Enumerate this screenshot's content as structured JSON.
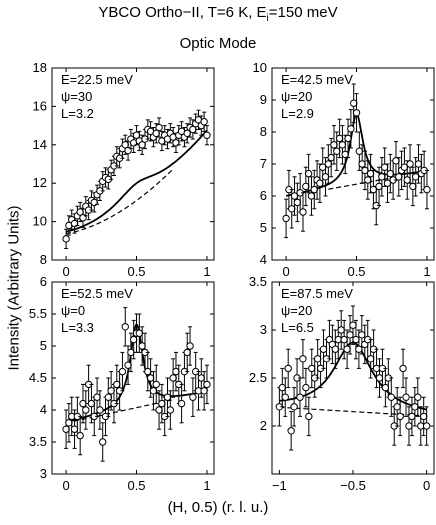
{
  "figure": {
    "title_line1": "YBCO Ortho−II, T=6 K, E",
    "title_line1_sub": "i",
    "title_line1_tail": "=150 meV",
    "title_line2": "Optic Mode",
    "ylabel": "Intensity (Arbitrary Units)",
    "xlabel": "(H, 0.5) (r. l. u.)"
  },
  "chart_data": [
    {
      "type": "scatter",
      "panel": "top-left",
      "annotations": [
        "E=22.5 meV",
        "ψ=30",
        "L=3.2"
      ],
      "xlim": [
        -0.1,
        1.05
      ],
      "ylim": [
        8,
        18
      ],
      "xticks": [
        0,
        0.5,
        1
      ],
      "xtick_labels": [
        "0",
        "0.5",
        "1"
      ],
      "yticks": [
        8,
        10,
        12,
        14,
        16,
        18
      ],
      "ytick_labels": [
        "8",
        "10",
        "12",
        "14",
        "16",
        "18"
      ],
      "points": [
        [
          0.0,
          9.1,
          0.5
        ],
        [
          0.02,
          9.8,
          0.5
        ],
        [
          0.04,
          10.1,
          0.5
        ],
        [
          0.06,
          9.9,
          0.5
        ],
        [
          0.08,
          10.3,
          0.5
        ],
        [
          0.1,
          10.5,
          0.5
        ],
        [
          0.12,
          10.2,
          0.5
        ],
        [
          0.14,
          10.8,
          0.5
        ],
        [
          0.16,
          10.6,
          0.5
        ],
        [
          0.18,
          11.1,
          0.5
        ],
        [
          0.2,
          11.0,
          0.5
        ],
        [
          0.22,
          11.4,
          0.5
        ],
        [
          0.24,
          11.6,
          0.5
        ],
        [
          0.26,
          12.1,
          0.5
        ],
        [
          0.28,
          12.3,
          0.5
        ],
        [
          0.3,
          12.2,
          0.5
        ],
        [
          0.32,
          12.7,
          0.5
        ],
        [
          0.34,
          12.9,
          0.5
        ],
        [
          0.36,
          13.4,
          0.5
        ],
        [
          0.38,
          13.3,
          0.5
        ],
        [
          0.4,
          13.8,
          0.5
        ],
        [
          0.42,
          14.0,
          0.5
        ],
        [
          0.44,
          13.7,
          0.5
        ],
        [
          0.46,
          14.3,
          0.5
        ],
        [
          0.48,
          14.1,
          0.5
        ],
        [
          0.5,
          14.5,
          0.5
        ],
        [
          0.52,
          14.2,
          0.5
        ],
        [
          0.54,
          14.0,
          0.5
        ],
        [
          0.56,
          14.3,
          0.5
        ],
        [
          0.58,
          14.8,
          0.5
        ],
        [
          0.6,
          14.7,
          0.5
        ],
        [
          0.62,
          14.4,
          0.5
        ],
        [
          0.64,
          14.6,
          0.5
        ],
        [
          0.66,
          14.9,
          0.5
        ],
        [
          0.68,
          14.2,
          0.5
        ],
        [
          0.7,
          14.5,
          0.5
        ],
        [
          0.72,
          14.3,
          0.5
        ],
        [
          0.74,
          14.6,
          0.5
        ],
        [
          0.76,
          14.4,
          0.5
        ],
        [
          0.78,
          14.1,
          0.5
        ],
        [
          0.8,
          14.5,
          0.5
        ],
        [
          0.82,
          14.7,
          0.5
        ],
        [
          0.84,
          14.4,
          0.5
        ],
        [
          0.86,
          14.6,
          0.5
        ],
        [
          0.88,
          14.9,
          0.5
        ],
        [
          0.9,
          14.8,
          0.5
        ],
        [
          0.92,
          15.1,
          0.5
        ],
        [
          0.94,
          15.3,
          0.5
        ],
        [
          0.96,
          15.0,
          0.5
        ],
        [
          0.98,
          15.2,
          0.5
        ],
        [
          1.0,
          14.5,
          0.5
        ]
      ],
      "fit": {
        "base": [
          9.3,
          5.8
        ],
        "amp": 0.9,
        "center": 0.5,
        "width": 0.18,
        "curve": 1.8
      },
      "background": {
        "base": [
          9.3,
          5.8
        ],
        "curve": 1.8
      },
      "background_xrange": [
        0.0,
        0.75
      ]
    },
    {
      "type": "scatter",
      "panel": "top-right",
      "annotations": [
        "E=42.5 meV",
        "ψ=20",
        "L=2.9"
      ],
      "xlim": [
        -0.1,
        1.05
      ],
      "ylim": [
        4,
        10
      ],
      "xticks": [
        0,
        0.5,
        1
      ],
      "xtick_labels": [
        "0",
        "0.5",
        "1"
      ],
      "yticks": [
        4,
        5,
        6,
        7,
        8,
        9,
        10
      ],
      "ytick_labels": [
        "4",
        "5",
        "6",
        "7",
        "8",
        "9",
        "10"
      ],
      "points": [
        [
          0.0,
          5.3,
          0.6
        ],
        [
          0.02,
          6.2,
          0.6
        ],
        [
          0.04,
          5.6,
          0.6
        ],
        [
          0.06,
          6.0,
          0.6
        ],
        [
          0.08,
          5.8,
          0.6
        ],
        [
          0.1,
          6.1,
          0.6
        ],
        [
          0.12,
          5.5,
          0.6
        ],
        [
          0.14,
          6.3,
          0.6
        ],
        [
          0.16,
          6.7,
          0.6
        ],
        [
          0.18,
          6.0,
          0.6
        ],
        [
          0.2,
          6.2,
          0.6
        ],
        [
          0.22,
          6.5,
          0.6
        ],
        [
          0.24,
          6.4,
          0.6
        ],
        [
          0.26,
          6.9,
          0.6
        ],
        [
          0.28,
          6.6,
          0.6
        ],
        [
          0.3,
          7.0,
          0.6
        ],
        [
          0.32,
          7.2,
          0.6
        ],
        [
          0.34,
          7.6,
          0.6
        ],
        [
          0.36,
          7.4,
          0.6
        ],
        [
          0.38,
          7.8,
          0.6
        ],
        [
          0.4,
          7.6,
          0.6
        ],
        [
          0.42,
          7.3,
          0.6
        ],
        [
          0.44,
          7.8,
          0.6
        ],
        [
          0.46,
          8.1,
          0.6
        ],
        [
          0.48,
          8.9,
          0.6
        ],
        [
          0.5,
          8.6,
          0.6
        ],
        [
          0.52,
          7.4,
          0.6
        ],
        [
          0.54,
          7.0,
          0.6
        ],
        [
          0.56,
          6.8,
          0.6
        ],
        [
          0.58,
          6.5,
          0.6
        ],
        [
          0.6,
          6.7,
          0.6
        ],
        [
          0.62,
          6.2,
          0.6
        ],
        [
          0.64,
          5.7,
          0.6
        ],
        [
          0.66,
          6.3,
          0.6
        ],
        [
          0.68,
          6.6,
          0.6
        ],
        [
          0.7,
          6.9,
          0.6
        ],
        [
          0.72,
          6.4,
          0.6
        ],
        [
          0.74,
          6.7,
          0.6
        ],
        [
          0.76,
          6.5,
          0.6
        ],
        [
          0.78,
          7.1,
          0.6
        ],
        [
          0.8,
          6.6,
          0.6
        ],
        [
          0.82,
          6.8,
          0.6
        ],
        [
          0.84,
          6.9,
          0.6
        ],
        [
          0.86,
          6.5,
          0.6
        ],
        [
          0.88,
          7.0,
          0.6
        ],
        [
          0.9,
          6.3,
          0.6
        ],
        [
          0.92,
          6.6,
          0.6
        ],
        [
          0.94,
          7.0,
          0.6
        ],
        [
          0.96,
          6.7,
          0.6
        ],
        [
          0.98,
          6.8,
          0.6
        ],
        [
          1.0,
          6.2,
          0.6
        ]
      ],
      "fit": {
        "base": [
          5.9,
          0.9
        ],
        "amp": 2.2,
        "center": 0.5,
        "width": 0.055,
        "curve": 1.0
      },
      "background": {
        "base": [
          5.9,
          0.9
        ],
        "curve": 1.0
      },
      "background_xrange": [
        0.3,
        0.8
      ]
    },
    {
      "type": "scatter",
      "panel": "bottom-left",
      "annotations": [
        "E=52.5 meV",
        "ψ=0",
        "L=3.3"
      ],
      "xlim": [
        -0.1,
        1.05
      ],
      "ylim": [
        3,
        6
      ],
      "xticks": [
        0,
        0.5,
        1
      ],
      "xtick_labels": [
        "0",
        "0.5",
        "1"
      ],
      "yticks": [
        3,
        3.5,
        4,
        4.5,
        5,
        5.5,
        6
      ],
      "ytick_labels": [
        "3",
        "3.5",
        "4",
        "4.5",
        "5",
        "5.5",
        "6"
      ],
      "points": [
        [
          0.0,
          3.7,
          0.3
        ],
        [
          0.02,
          3.8,
          0.3
        ],
        [
          0.04,
          3.9,
          0.3
        ],
        [
          0.06,
          3.7,
          0.3
        ],
        [
          0.08,
          3.9,
          0.3
        ],
        [
          0.1,
          3.6,
          0.3
        ],
        [
          0.12,
          4.1,
          0.3
        ],
        [
          0.14,
          4.0,
          0.3
        ],
        [
          0.16,
          4.4,
          0.3
        ],
        [
          0.18,
          4.1,
          0.3
        ],
        [
          0.2,
          3.9,
          0.3
        ],
        [
          0.22,
          4.2,
          0.3
        ],
        [
          0.24,
          4.0,
          0.3
        ],
        [
          0.26,
          3.5,
          0.3
        ],
        [
          0.28,
          3.9,
          0.3
        ],
        [
          0.3,
          4.2,
          0.3
        ],
        [
          0.32,
          4.3,
          0.3
        ],
        [
          0.34,
          4.1,
          0.3
        ],
        [
          0.36,
          4.4,
          0.3
        ],
        [
          0.38,
          4.3,
          0.3
        ],
        [
          0.4,
          4.6,
          0.3
        ],
        [
          0.42,
          5.3,
          0.3
        ],
        [
          0.44,
          4.7,
          0.3
        ],
        [
          0.46,
          4.9,
          0.3
        ],
        [
          0.48,
          5.1,
          0.3
        ],
        [
          0.5,
          5.2,
          0.3
        ],
        [
          0.52,
          5.2,
          0.3
        ],
        [
          0.54,
          5.0,
          0.3
        ],
        [
          0.56,
          4.9,
          0.3
        ],
        [
          0.58,
          4.6,
          0.3
        ],
        [
          0.6,
          4.5,
          0.3
        ],
        [
          0.62,
          4.3,
          0.3
        ],
        [
          0.64,
          4.4,
          0.3
        ],
        [
          0.66,
          4.0,
          0.3
        ],
        [
          0.68,
          4.1,
          0.3
        ],
        [
          0.7,
          3.9,
          0.3
        ],
        [
          0.72,
          4.2,
          0.3
        ],
        [
          0.74,
          4.0,
          0.3
        ],
        [
          0.76,
          4.5,
          0.3
        ],
        [
          0.78,
          4.6,
          0.3
        ],
        [
          0.8,
          4.4,
          0.3
        ],
        [
          0.82,
          4.1,
          0.3
        ],
        [
          0.84,
          4.6,
          0.3
        ],
        [
          0.86,
          4.9,
          0.3
        ],
        [
          0.88,
          5.0,
          0.3
        ],
        [
          0.9,
          4.2,
          0.3
        ],
        [
          0.92,
          4.6,
          0.3
        ],
        [
          0.94,
          4.3,
          0.3
        ],
        [
          0.96,
          4.5,
          0.3
        ],
        [
          0.98,
          4.3,
          0.3
        ],
        [
          1.0,
          4.4,
          0.3
        ]
      ],
      "fit": {
        "base": [
          3.75,
          0.55
        ],
        "amp": 1.3,
        "center": 0.5,
        "width": 0.055,
        "curve": 1.0
      },
      "background": {
        "base": [
          3.75,
          0.55
        ],
        "curve": 1.0
      },
      "background_xrange": [
        0.0,
        0.75
      ]
    },
    {
      "type": "scatter",
      "panel": "bottom-right",
      "annotations": [
        "E=87.5 meV",
        "ψ=20",
        "L=6.5"
      ],
      "xlim": [
        -1.05,
        0.05
      ],
      "ylim": [
        1.5,
        3.5
      ],
      "xticks": [
        -1,
        -0.5,
        0
      ],
      "xtick_labels": [
        "−1",
        "−0.5",
        "0"
      ],
      "yticks": [
        2,
        2.5,
        3,
        3.5
      ],
      "ytick_labels": [
        "2",
        "2.5",
        "3",
        "3.5"
      ],
      "points": [
        [
          -1.0,
          2.2,
          0.2
        ],
        [
          -0.98,
          2.4,
          0.2
        ],
        [
          -0.96,
          2.3,
          0.2
        ],
        [
          -0.94,
          2.6,
          0.2
        ],
        [
          -0.92,
          1.95,
          0.2
        ],
        [
          -0.9,
          2.2,
          0.2
        ],
        [
          -0.88,
          2.5,
          0.2
        ],
        [
          -0.86,
          2.3,
          0.2
        ],
        [
          -0.84,
          2.7,
          0.2
        ],
        [
          -0.82,
          2.4,
          0.2
        ],
        [
          -0.8,
          2.1,
          0.2
        ],
        [
          -0.78,
          2.6,
          0.2
        ],
        [
          -0.76,
          2.5,
          0.2
        ],
        [
          -0.74,
          2.7,
          0.2
        ],
        [
          -0.72,
          2.6,
          0.2
        ],
        [
          -0.7,
          2.8,
          0.2
        ],
        [
          -0.68,
          2.7,
          0.2
        ],
        [
          -0.66,
          2.9,
          0.2
        ],
        [
          -0.64,
          2.85,
          0.2
        ],
        [
          -0.62,
          2.8,
          0.2
        ],
        [
          -0.6,
          2.9,
          0.2
        ],
        [
          -0.58,
          3.0,
          0.2
        ],
        [
          -0.56,
          2.9,
          0.2
        ],
        [
          -0.54,
          2.8,
          0.2
        ],
        [
          -0.52,
          2.95,
          0.2
        ],
        [
          -0.5,
          3.05,
          0.2
        ],
        [
          -0.48,
          2.9,
          0.2
        ],
        [
          -0.46,
          2.8,
          0.2
        ],
        [
          -0.44,
          2.95,
          0.2
        ],
        [
          -0.42,
          2.85,
          0.2
        ],
        [
          -0.4,
          2.9,
          0.2
        ],
        [
          -0.38,
          2.7,
          0.2
        ],
        [
          -0.36,
          2.8,
          0.2
        ],
        [
          -0.34,
          2.6,
          0.2
        ],
        [
          -0.32,
          2.5,
          0.2
        ],
        [
          -0.3,
          2.6,
          0.2
        ],
        [
          -0.28,
          2.4,
          0.2
        ],
        [
          -0.26,
          2.5,
          0.2
        ],
        [
          -0.24,
          2.3,
          0.2
        ],
        [
          -0.22,
          2.0,
          0.2
        ],
        [
          -0.2,
          2.2,
          0.2
        ],
        [
          -0.18,
          2.1,
          0.2
        ],
        [
          -0.16,
          2.6,
          0.2
        ],
        [
          -0.14,
          2.3,
          0.2
        ],
        [
          -0.12,
          2.0,
          0.2
        ],
        [
          -0.1,
          2.1,
          0.2
        ],
        [
          -0.08,
          2.2,
          0.2
        ],
        [
          -0.06,
          2.3,
          0.2
        ],
        [
          -0.04,
          2.0,
          0.2
        ],
        [
          -0.02,
          2.1,
          0.2
        ],
        [
          0.0,
          2.0,
          0.2
        ]
      ],
      "fit": {
        "base": [
          2.2,
          -0.1
        ],
        "amp": 0.72,
        "center": -0.5,
        "width": 0.16,
        "curve": 1.0
      },
      "background": {
        "base": [
          2.2,
          -0.1
        ],
        "curve": 1.0
      },
      "background_xrange": [
        -1.0,
        -0.05
      ]
    }
  ]
}
